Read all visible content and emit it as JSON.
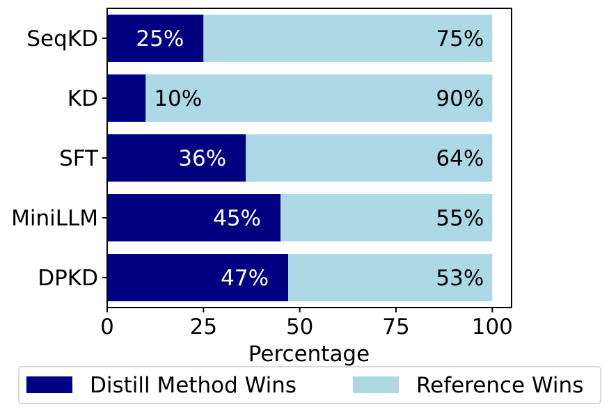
{
  "chart_data": {
    "type": "bar",
    "orientation": "horizontal",
    "stacked": true,
    "categories": [
      "SeqKD",
      "KD",
      "SFT",
      "MiniLLM",
      "DPKD"
    ],
    "series": [
      {
        "name": "Distill Method Wins",
        "values": [
          25,
          10,
          36,
          45,
          47
        ],
        "color": "#000080",
        "label_color": "#ffffff"
      },
      {
        "name": "Reference Wins",
        "values": [
          75,
          90,
          64,
          55,
          53
        ],
        "color": "#add8e6",
        "label_color": "#000000"
      }
    ],
    "data_labels": {
      "series_0": [
        "25%",
        "10%",
        "36%",
        "45%",
        "47%"
      ],
      "series_1": [
        "75%",
        "90%",
        "64%",
        "55%",
        "53%"
      ]
    },
    "title": "",
    "xlabel": "Percentage",
    "ylabel": "",
    "xlim": [
      0,
      105
    ],
    "xticks": [
      0,
      25,
      50,
      75,
      100
    ],
    "xtick_labels": [
      "0",
      "25",
      "50",
      "75",
      "100"
    ],
    "grid": false,
    "legend_position": "bottom",
    "small_value_label_placement": "outside"
  }
}
